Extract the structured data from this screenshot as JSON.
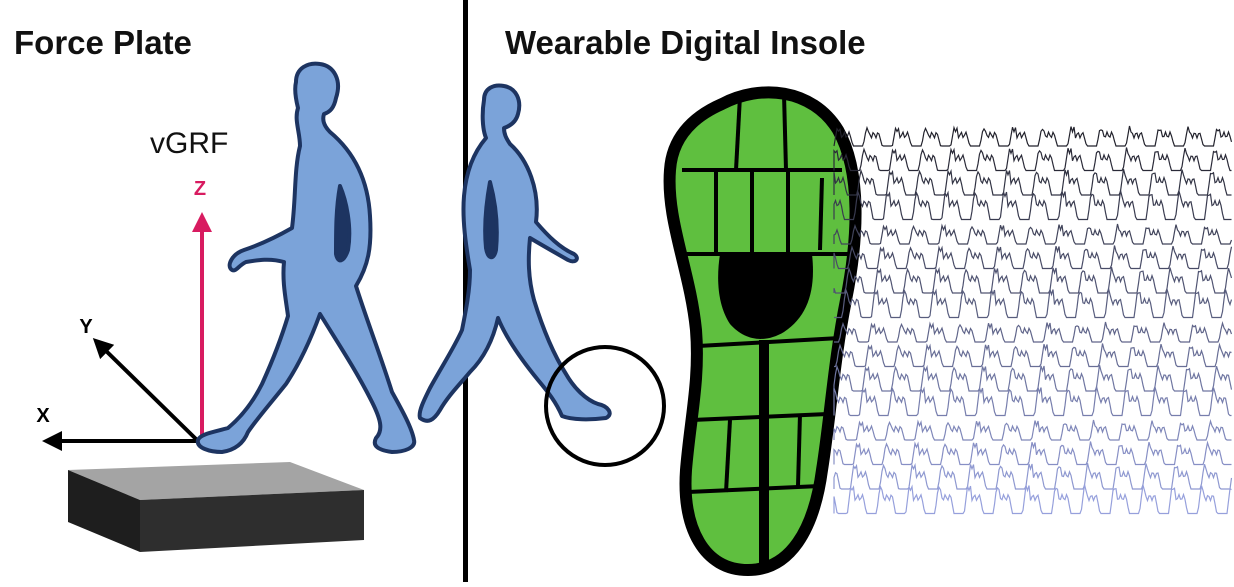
{
  "panels": {
    "left": {
      "title": "Force Plate"
    },
    "right": {
      "title": "Wearable Digital Insole"
    }
  },
  "labels": {
    "vgrf": "vGRF",
    "z_axis": "Z",
    "y_axis": "Y",
    "x_axis": "X"
  },
  "colors": {
    "figure_fill": "#7ba3d9",
    "figure_stroke": "#1d3461",
    "insole_green": "#5fbf3f",
    "z_arrow": "#d81b60",
    "plate_top": "#a4a4a4",
    "plate_side": "#2b2b2b",
    "divider": "#000000"
  },
  "icons": {
    "figure_left": "walking-person-icon",
    "figure_right": "walking-person-icon",
    "insole": "insole-sensor-grid-icon",
    "foot_highlight": "circle-highlight-icon"
  }
}
